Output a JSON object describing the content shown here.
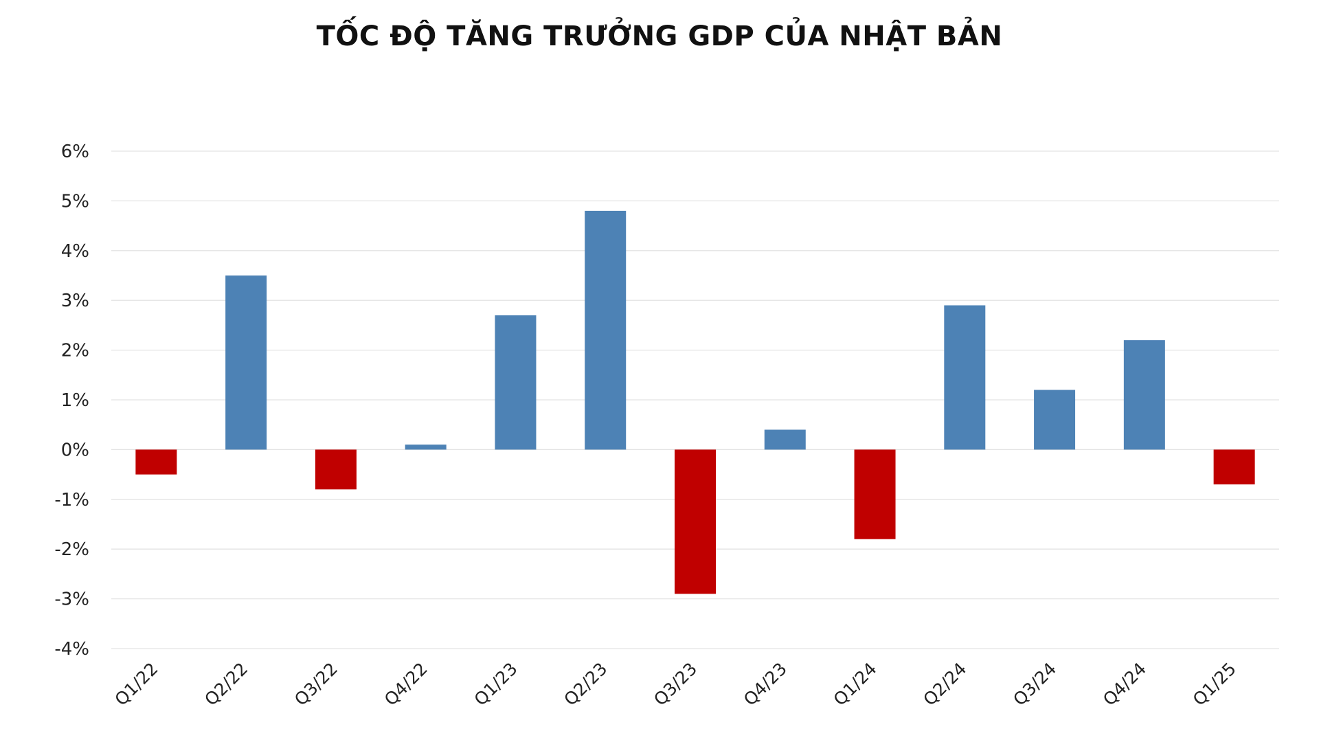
{
  "chart_data": {
    "type": "bar",
    "title": "TỐC ĐỘ TĂNG TRƯỞNG GDP CỦA NHẬT BẢN",
    "xlabel": "",
    "ylabel": "",
    "categories": [
      "Q1/22",
      "Q2/22",
      "Q3/22",
      "Q4/22",
      "Q1/23",
      "Q2/23",
      "Q3/23",
      "Q4/23",
      "Q1/24",
      "Q2/24",
      "Q3/24",
      "Q4/24",
      "Q1/25"
    ],
    "values": [
      -0.5,
      3.5,
      -0.8,
      0.1,
      2.7,
      4.8,
      -2.9,
      0.4,
      -1.8,
      2.9,
      1.2,
      2.2,
      -0.7
    ],
    "ylim": [
      -4,
      6
    ],
    "yticks": [
      -4,
      -3,
      -2,
      -1,
      0,
      1,
      2,
      3,
      4,
      5,
      6
    ],
    "ytick_labels": [
      "-4%",
      "-3%",
      "-2%",
      "-1%",
      "0%",
      "1%",
      "2%",
      "3%",
      "4%",
      "5%",
      "6%"
    ],
    "grid": true,
    "legend": "none",
    "colors": {
      "positive": "#4d82b5",
      "negative": "#c00000"
    }
  }
}
